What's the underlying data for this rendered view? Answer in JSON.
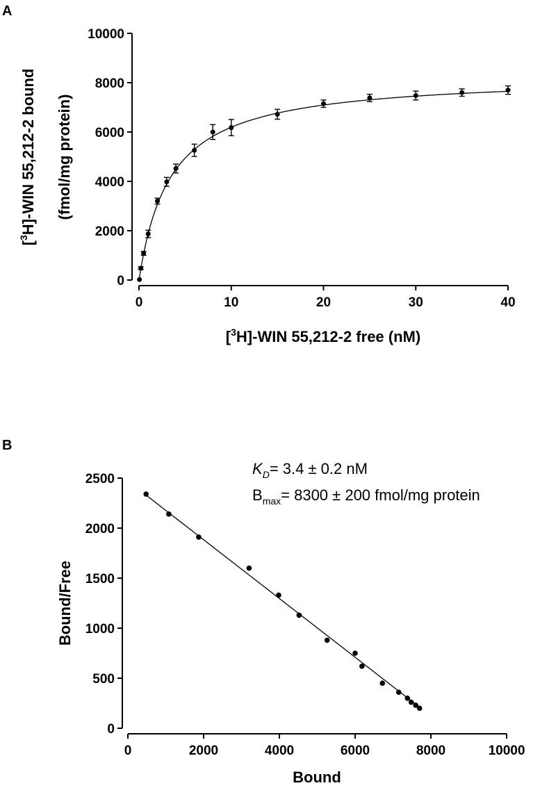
{
  "chart_data": [
    {
      "panel": "A",
      "type": "scatter",
      "title": "",
      "xlabel_pre": "[",
      "xlabel_sup": "3",
      "xlabel_post": "H]-WIN 55,212-2 free (nM)",
      "ylabel_line1_pre": "[",
      "ylabel_line1_sup": "3",
      "ylabel_line1_post": "H]-WIN 55,212-2 bound",
      "ylabel_line2": "(fmol/mg protein)",
      "xlim": [
        0,
        40
      ],
      "ylim": [
        0,
        10000
      ],
      "xticks": [
        0,
        10,
        20,
        30,
        40
      ],
      "yticks": [
        0,
        2000,
        4000,
        6000,
        8000,
        10000
      ],
      "x": [
        0.05,
        0.2,
        0.5,
        1,
        2,
        3,
        4,
        6,
        8,
        10,
        15,
        20,
        25,
        30,
        35,
        40
      ],
      "y": [
        20,
        480,
        1080,
        1870,
        3200,
        3980,
        4520,
        5260,
        6000,
        6180,
        6720,
        7150,
        7380,
        7480,
        7600,
        7700
      ],
      "yerr": [
        0,
        60,
        80,
        150,
        120,
        180,
        180,
        250,
        300,
        330,
        200,
        150,
        150,
        180,
        150,
        170
      ],
      "fit": {
        "model": "one-site binding",
        "Bmax": 8300,
        "Kd": 3.4
      }
    },
    {
      "panel": "B",
      "type": "scatter",
      "title": "",
      "xlabel": "Bound",
      "ylabel": "Bound/Free",
      "xlim": [
        0,
        10000
      ],
      "ylim": [
        0,
        2500
      ],
      "xticks": [
        0,
        2000,
        4000,
        6000,
        8000,
        10000
      ],
      "yticks": [
        0,
        500,
        1000,
        1500,
        2000,
        2500
      ],
      "x": [
        480,
        1080,
        1870,
        3200,
        3980,
        4520,
        5260,
        6000,
        6180,
        6720,
        7150,
        7380,
        7480,
        7600,
        7700
      ],
      "y": [
        2340,
        2140,
        1910,
        1600,
        1330,
        1130,
        880,
        750,
        620,
        450,
        360,
        300,
        260,
        230,
        200
      ],
      "fit": {
        "type": "line",
        "x": [
          480,
          7700
        ],
        "y": [
          2330,
          210
        ]
      },
      "annotation": {
        "kd_symbol": "K",
        "kd_subscript": "D",
        "kd_text": "= 3.4 ± 0.2 nM",
        "bmax_symbol": "B",
        "bmax_subscript": "max",
        "bmax_text": "= 8300 ± 200 fmol/mg protein"
      }
    }
  ]
}
